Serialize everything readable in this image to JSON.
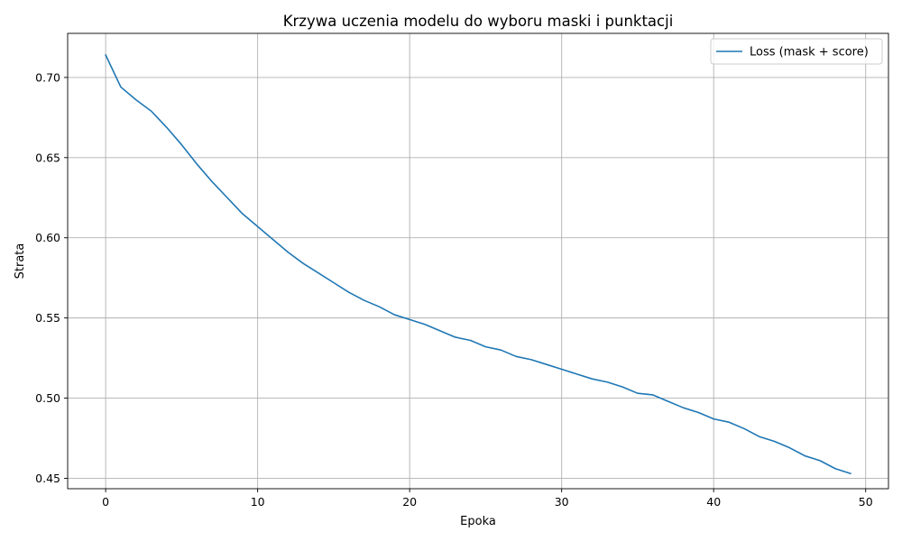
{
  "chart_data": {
    "type": "line",
    "title": "Krzywa uczenia modelu do wyboru maski i punktacji",
    "xlabel": "Epoka",
    "ylabel": "Strata",
    "xlim": [
      -2.5,
      51.5
    ],
    "ylim": [
      0.4435,
      0.7275
    ],
    "xticks": [
      0,
      10,
      20,
      30,
      40,
      50
    ],
    "yticks": [
      0.45,
      0.5,
      0.55,
      0.6,
      0.65,
      0.7
    ],
    "grid": true,
    "legend_position": "top-right",
    "series": [
      {
        "name": "Loss (mask + score)",
        "color": "#1f77b4",
        "x": [
          0,
          1,
          2,
          3,
          4,
          5,
          6,
          7,
          8,
          9,
          10,
          11,
          12,
          13,
          14,
          15,
          16,
          17,
          18,
          19,
          20,
          21,
          22,
          23,
          24,
          25,
          26,
          27,
          28,
          29,
          30,
          31,
          32,
          33,
          34,
          35,
          36,
          37,
          38,
          39,
          40,
          41,
          42,
          43,
          44,
          45,
          46,
          47,
          48,
          49
        ],
        "y": [
          0.714,
          0.694,
          0.686,
          0.679,
          0.669,
          0.658,
          0.646,
          0.635,
          0.625,
          0.615,
          0.607,
          0.599,
          0.591,
          0.584,
          0.578,
          0.572,
          0.566,
          0.561,
          0.557,
          0.552,
          0.549,
          0.546,
          0.542,
          0.538,
          0.536,
          0.532,
          0.53,
          0.526,
          0.524,
          0.521,
          0.518,
          0.515,
          0.512,
          0.51,
          0.507,
          0.503,
          0.502,
          0.498,
          0.494,
          0.491,
          0.487,
          0.485,
          0.481,
          0.476,
          0.473,
          0.469,
          0.464,
          0.461,
          0.456,
          0.453
        ]
      }
    ]
  }
}
